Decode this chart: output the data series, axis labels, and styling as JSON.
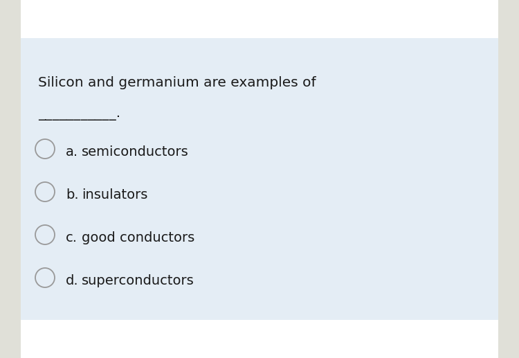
{
  "question_line1": "Silicon and germanium are examples of",
  "question_line2": "___________.",
  "options": [
    {
      "letter": "a.",
      "text": "semiconductors"
    },
    {
      "letter": "b.",
      "text": "insulators"
    },
    {
      "letter": "c.",
      "text": "good conductors"
    },
    {
      "letter": "d.",
      "text": "superconductors"
    }
  ],
  "bg_color": "#e8eff4",
  "card_color": "#e4edf5",
  "white_top_color": "#ffffff",
  "white_bot_color": "#ffffff",
  "sidebar_color": "#e0e0d8",
  "text_color": "#1a1a1a",
  "circle_edge_color": "#999999",
  "circle_face_color": "#e4edf5",
  "question_fontsize": 14.5,
  "option_fontsize": 14,
  "figsize": [
    7.5,
    5.17
  ],
  "dpi": 100
}
